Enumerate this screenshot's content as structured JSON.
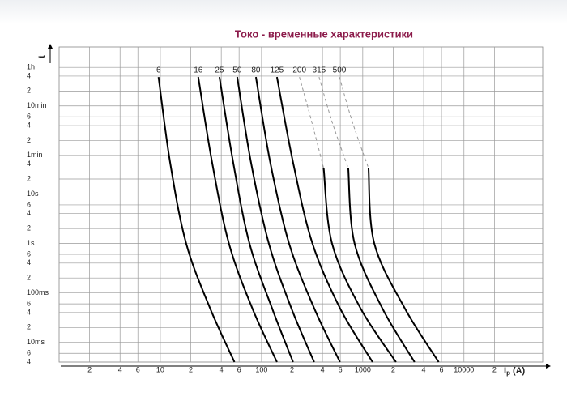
{
  "chart_data": {
    "type": "line",
    "title": "Токо - временные характеристики",
    "x_label": "I",
    "x_label_sub": "p",
    "x_label_unit": "(A)",
    "y_label": "t",
    "xscale": "log",
    "yscale": "log",
    "grid": true,
    "color": "#000000",
    "xlim": [
      1,
      60000
    ],
    "ylim": [
      0.004,
      9300
    ],
    "xticks": [
      2,
      4,
      6,
      10,
      {
        "value": 20,
        "label": "2"
      },
      {
        "value": 40,
        "label": "4"
      },
      {
        "value": 60,
        "label": "6"
      },
      100,
      {
        "value": 200,
        "label": "2"
      },
      {
        "value": 400,
        "label": "4"
      },
      {
        "value": 600,
        "label": "6"
      },
      1000,
      {
        "value": 2000,
        "label": "2"
      },
      {
        "value": 4000,
        "label": "4"
      },
      {
        "value": 6000,
        "label": "6"
      },
      10000,
      {
        "value": 20000,
        "label": "2"
      }
    ],
    "yticks": [
      {
        "value": 0.004,
        "label": "4"
      },
      {
        "value": 0.006,
        "label": "6"
      },
      {
        "value": 0.01,
        "label": "10ms"
      },
      {
        "value": 0.02,
        "label": "2"
      },
      {
        "value": 0.04,
        "label": "4"
      },
      {
        "value": 0.06,
        "label": "6"
      },
      {
        "value": 0.1,
        "label": "100ms"
      },
      {
        "value": 0.2,
        "label": "2"
      },
      {
        "value": 0.4,
        "label": "4"
      },
      {
        "value": 0.6,
        "label": "6"
      },
      {
        "value": 1,
        "label": "1s"
      },
      2,
      4,
      6,
      {
        "value": 10,
        "label": "10s"
      },
      {
        "value": 20,
        "label": "2"
      },
      {
        "value": 40,
        "label": "4"
      },
      {
        "value": 60,
        "label": "1min"
      },
      {
        "value": 120,
        "label": "2"
      },
      {
        "value": 240,
        "label": "4"
      },
      {
        "value": 360,
        "label": "6"
      },
      {
        "value": 600,
        "label": "10min"
      },
      {
        "value": 1200,
        "label": "2"
      },
      {
        "value": 2400,
        "label": "4"
      },
      {
        "value": 3600,
        "label": "1h"
      }
    ],
    "series": [
      {
        "name": "6",
        "color": "#000000",
        "x": [
          9.6,
          12.5,
          18,
          31,
          54
        ],
        "values": [
          2300,
          43,
          1,
          0.049,
          0.004
        ]
      },
      {
        "name": "16",
        "color": "#000000",
        "x": [
          23.7,
          32.5,
          47.6,
          81,
          142
        ],
        "values": [
          2300,
          43,
          1,
          0.049,
          0.004
        ]
      },
      {
        "name": "25",
        "color": "#000000",
        "x": [
          38.4,
          52.5,
          76,
          127,
          205
        ],
        "values": [
          2300,
          43,
          1,
          0.049,
          0.004
        ]
      },
      {
        "name": "50",
        "color": "#000000",
        "x": [
          57.5,
          78.7,
          118,
          197,
          331
        ],
        "values": [
          2300,
          43,
          1,
          0.049,
          0.004
        ]
      },
      {
        "name": "80",
        "color": "#000000",
        "x": [
          88,
          122,
          187,
          331,
          596
        ],
        "values": [
          2300,
          43,
          1,
          0.049,
          0.004
        ]
      },
      {
        "name": "125",
        "color": "#000000",
        "x": [
          142,
          205,
          318,
          596,
          1250
        ],
        "values": [
          2300,
          43,
          1,
          0.049,
          0.004
        ]
      },
      {
        "name": "200",
        "color": "#000000",
        "x": [
          411,
          497,
          950,
          2130
        ],
        "values": [
          33,
          1,
          0.049,
          0.004
        ],
        "dashed": {
          "color": "#999999",
          "x": [
            237,
            313,
            411
          ],
          "values": [
            2300,
            288,
            33
          ]
        }
      },
      {
        "name": "315",
        "color": "#000000",
        "x": [
          719,
          830,
          1560,
          3250
        ],
        "values": [
          33,
          1,
          0.049,
          0.004
        ],
        "dashed": {
          "color": "#999999",
          "x": [
            370,
            497,
            719
          ],
          "values": [
            2300,
            288,
            33
          ]
        }
      },
      {
        "name": "500",
        "color": "#000000",
        "x": [
          1140,
          1300,
          2600,
          5630
        ],
        "values": [
          33,
          1,
          0.049,
          0.004
        ],
        "dashed": {
          "color": "#999999",
          "x": [
            588,
            788,
            1140
          ],
          "values": [
            2300,
            288,
            33
          ]
        }
      }
    ]
  }
}
